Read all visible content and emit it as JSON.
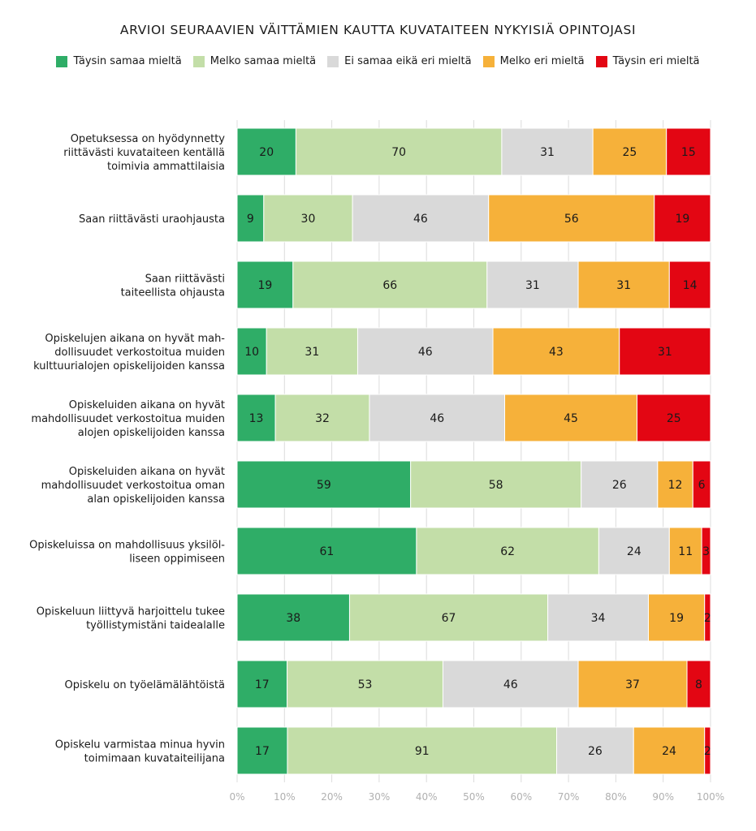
{
  "chart_data": {
    "type": "bar",
    "orientation": "horizontal",
    "stacked": "percent",
    "title": "ARVIOI SEURAAVIEN VÄITTÄMIEN KAUTTA KUVATAITEEN NYKYISIÄ OPINTOJASI",
    "legend_position": "top",
    "grid": true,
    "xlim": [
      0,
      100
    ],
    "x_ticks": [
      "0%",
      "10%",
      "20%",
      "30%",
      "40%",
      "50%",
      "60%",
      "70%",
      "80%",
      "90%",
      "100%"
    ],
    "categories": [
      [
        "Opetuksessa on hyödynnetty",
        "riittävästi kuvataiteen kentällä",
        "toimivia ammattilaisia"
      ],
      [
        "Saan riittävästi uraohjausta"
      ],
      [
        "Saan riittävästi",
        "taiteellista ohjausta"
      ],
      [
        "Opiskelujen aikana on hyvät mah-",
        "dollisuudet verkostoitua muiden",
        "kulttuurialojen opiskelijoiden kanssa"
      ],
      [
        "Opiskeluiden aikana on hyvät",
        "mahdollisuudet verkostoitua muiden",
        "alojen opiskelijoiden kanssa"
      ],
      [
        "Opiskeluiden aikana on hyvät",
        "mahdollisuudet verkostoitua oman",
        "alan opiskelijoiden kanssa"
      ],
      [
        "Opiskeluissa on mahdollisuus yksilöl-",
        "liseen oppimiseen"
      ],
      [
        "Opiskeluun liittyvä harjoittelu tukee",
        "työllistymistäni taidealalle"
      ],
      [
        "Opiskelu on työelämälähtöistä"
      ],
      [
        "Opiskelu varmistaa minua hyvin",
        "toimimaan kuvataiteilijana"
      ]
    ],
    "series": [
      {
        "name": "Täysin samaa mieltä",
        "color": "#2fad67",
        "values": [
          20,
          9,
          19,
          10,
          13,
          59,
          61,
          38,
          17,
          17
        ]
      },
      {
        "name": "Melko samaa mieltä",
        "color": "#c3dea8",
        "values": [
          70,
          30,
          66,
          31,
          32,
          58,
          62,
          67,
          53,
          91
        ]
      },
      {
        "name": "Ei samaa eikä eri mieltä",
        "color": "#d9d9d9",
        "values": [
          31,
          46,
          31,
          46,
          46,
          26,
          24,
          34,
          46,
          26
        ]
      },
      {
        "name": "Melko eri mieltä",
        "color": "#f6b13a",
        "values": [
          25,
          56,
          31,
          43,
          45,
          12,
          11,
          19,
          37,
          24
        ]
      },
      {
        "name": "Täysin eri mieltä",
        "color": "#e30613",
        "values": [
          15,
          19,
          14,
          31,
          25,
          6,
          3,
          2,
          8,
          2
        ]
      }
    ]
  }
}
